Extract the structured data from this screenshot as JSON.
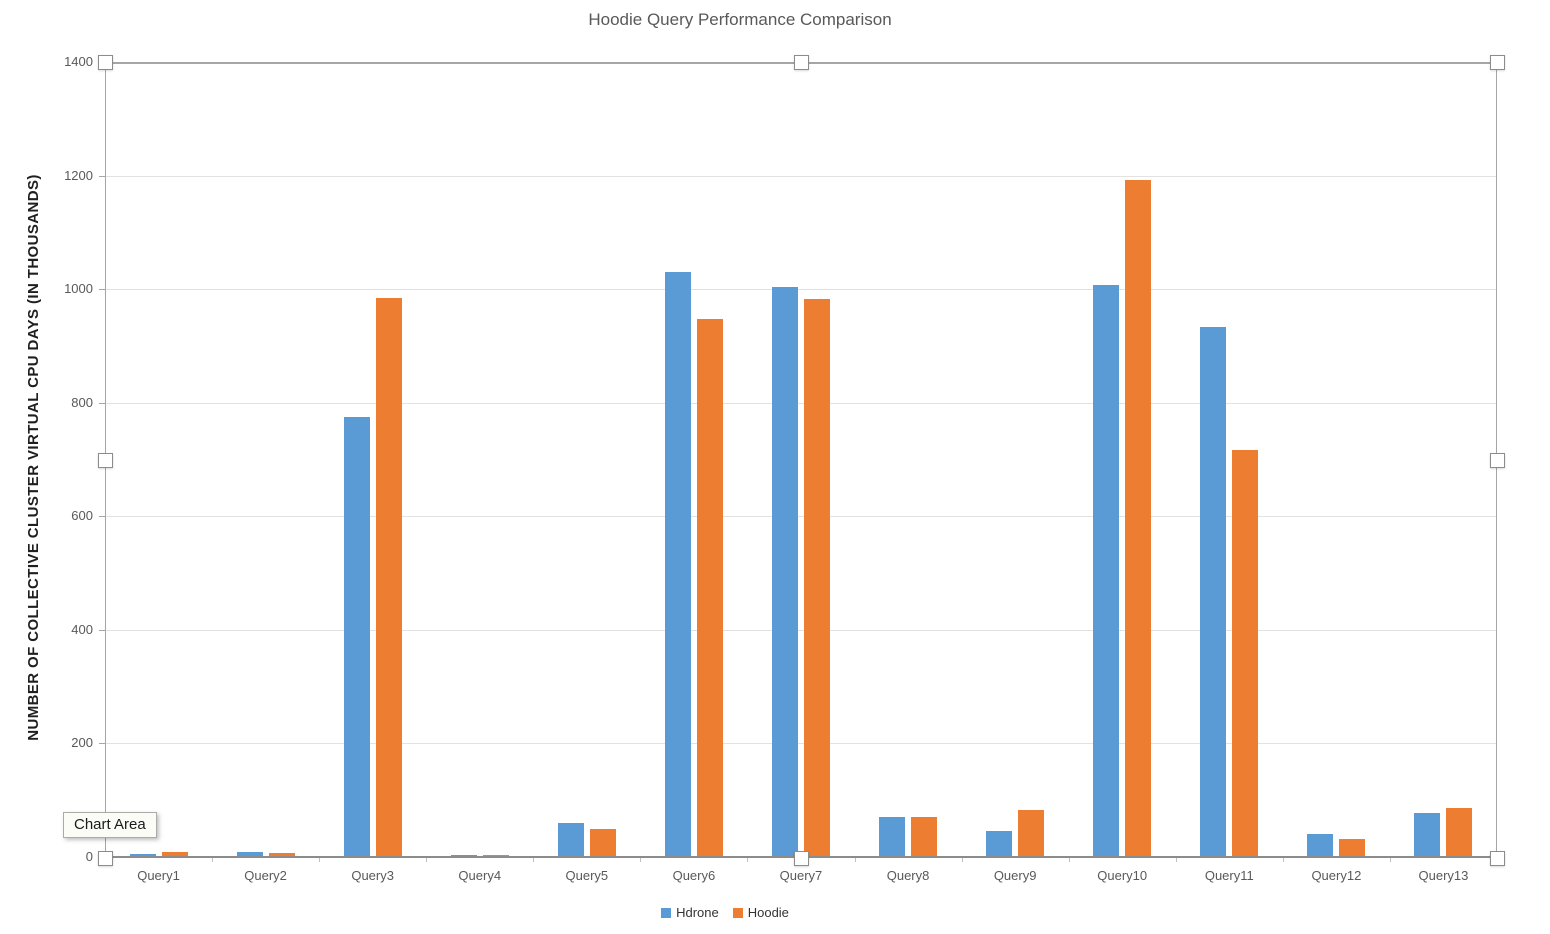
{
  "app": {
    "tooltip": "Chart Area"
  },
  "chart_data": {
    "type": "bar",
    "title": "Hoodie Query Performance Comparison",
    "xlabel": "",
    "ylabel": "NUMBER OF COLLECTIVE CLUSTER VIRTUAL CPU DAYS (IN THOUSANDS)",
    "categories": [
      "Query1",
      "Query2",
      "Query3",
      "Query4",
      "Query5",
      "Query6",
      "Query7",
      "Query8",
      "Query9",
      "Query10",
      "Query11",
      "Query12",
      "Query13"
    ],
    "series": [
      {
        "name": "Hdrone",
        "color": "#5B9BD5",
        "values": [
          5,
          8,
          775,
          4,
          60,
          1030,
          1003,
          71,
          45,
          1007,
          934,
          40,
          78
        ]
      },
      {
        "name": "Hoodie",
        "color": "#ED7D31",
        "values": [
          8,
          7,
          985,
          4,
          49,
          948,
          983,
          71,
          83,
          1192,
          716,
          31,
          86
        ]
      }
    ],
    "ylim": [
      0,
      1400
    ],
    "yticks": [
      0,
      200,
      400,
      600,
      800,
      1000,
      1200,
      1400
    ],
    "grid": "horizontal",
    "legend_position": "bottom"
  },
  "colors": {
    "series_blue": "#5B9BD5",
    "series_orange": "#ED7D31",
    "title_text": "#595959",
    "axis_text": "#595959",
    "gridline": "#E2E2E2",
    "axis_line": "#8C8C8C",
    "selection_border": "#A6A6A6"
  }
}
